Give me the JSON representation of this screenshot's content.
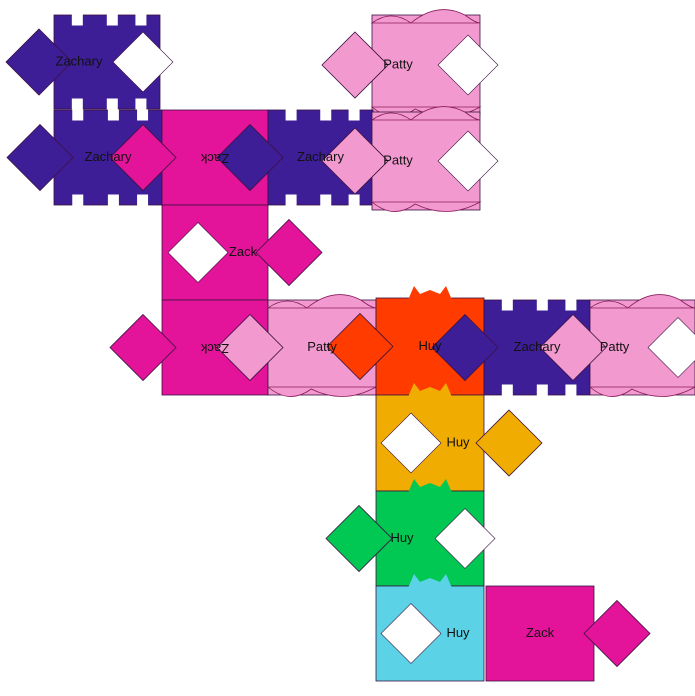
{
  "board": {
    "background": "#ffffff",
    "colors": {
      "Zachary": "#3d1e96",
      "Zack": "#e3139a",
      "Patty": "#f29ad0",
      "Huy_red": "#ff3b00",
      "Huy_yellow": "#f0ac00",
      "Huy_green": "#00c853",
      "Huy_cyan": "#5bd2e6"
    },
    "tiles": [
      {
        "id": "t1",
        "label": "Zachary",
        "color": "Zachary",
        "notch": "left",
        "hole": "right"
      },
      {
        "id": "t2",
        "label": "Patty",
        "color": "Patty",
        "notch": "left",
        "hole": "right"
      },
      {
        "id": "t3",
        "label": "Zachary",
        "color": "Zachary",
        "notch": "left",
        "hole": "none"
      },
      {
        "id": "t4",
        "label": "Zack",
        "color": "Zack",
        "notch": "left",
        "hole": "none",
        "flipped": true
      },
      {
        "id": "t5",
        "label": "Zachary",
        "color": "Zachary",
        "notch": "left",
        "hole": "none"
      },
      {
        "id": "t6",
        "label": "Patty",
        "color": "Patty",
        "notch": "left",
        "hole": "right"
      },
      {
        "id": "t7",
        "label": "Zack",
        "color": "Zack",
        "notch": "right",
        "hole": "left"
      },
      {
        "id": "t8",
        "label": "Zack",
        "color": "Zack",
        "notch": "left",
        "hole": "none",
        "flipped": true
      },
      {
        "id": "t9",
        "label": "Patty",
        "color": "Patty",
        "notch": "left",
        "hole": "none"
      },
      {
        "id": "t10",
        "label": "Huy",
        "color": "Huy_red",
        "notch": "left",
        "hole": "none"
      },
      {
        "id": "t11",
        "label": "Zachary",
        "color": "Zachary",
        "notch": "left",
        "hole": "none"
      },
      {
        "id": "t12",
        "label": "Patty",
        "color": "Patty",
        "notch": "left",
        "hole": "right"
      },
      {
        "id": "t13",
        "label": "Huy",
        "color": "Huy_yellow",
        "notch": "right",
        "hole": "left"
      },
      {
        "id": "t14",
        "label": "Huy",
        "color": "Huy_green",
        "notch": "left",
        "hole": "right"
      },
      {
        "id": "t15",
        "label": "Huy",
        "color": "Huy_cyan",
        "notch": "none",
        "hole": "left"
      },
      {
        "id": "t16",
        "label": "Zack",
        "color": "Zack",
        "notch": "right",
        "hole": "none"
      }
    ]
  }
}
